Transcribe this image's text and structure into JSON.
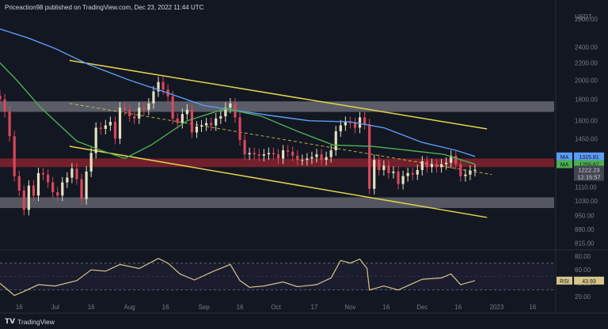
{
  "header": {
    "publisher": "Priceaction98 published on TradingView.com, Dec 23, 2022 11:44 UTC"
  },
  "footer": {
    "brand": "TradingView"
  },
  "chart_data": [
    {
      "type": "line",
      "title": "",
      "currency": "USDT",
      "y_ticks": [
        "2800.00",
        "2400.00",
        "2200.00",
        "2000.00",
        "1800.00",
        "1600.00",
        "1450.00",
        "1110.00",
        "1030.00",
        "950.00",
        "880.00",
        "815.00"
      ],
      "x_ticks": [
        "16",
        "Jul",
        "16",
        "Aug",
        "16",
        "Sep",
        "16",
        "Oct",
        "17",
        "Nov",
        "16",
        "Dec",
        "16",
        "2023",
        "16"
      ],
      "price_range_scale": "log",
      "ylim": [
        800,
        2900
      ],
      "xlim": [
        "2022-06-08",
        "2023-01-25"
      ],
      "candles_close": [
        [
          "2022-06-08",
          1800
        ],
        [
          "2022-06-10",
          1680
        ],
        [
          "2022-06-12",
          1470
        ],
        [
          "2022-06-14",
          1180
        ],
        [
          "2022-06-16",
          1090
        ],
        [
          "2022-06-18",
          980
        ],
        [
          "2022-06-20",
          1120
        ],
        [
          "2022-06-22",
          1060
        ],
        [
          "2022-06-24",
          1200
        ],
        [
          "2022-06-26",
          1190
        ],
        [
          "2022-06-28",
          1140
        ],
        [
          "2022-06-30",
          1080
        ],
        [
          "2022-07-02",
          1060
        ],
        [
          "2022-07-04",
          1140
        ],
        [
          "2022-07-06",
          1170
        ],
        [
          "2022-07-08",
          1230
        ],
        [
          "2022-07-10",
          1160
        ],
        [
          "2022-07-12",
          1040
        ],
        [
          "2022-07-14",
          1210
        ],
        [
          "2022-07-16",
          1340
        ],
        [
          "2022-07-18",
          1540
        ],
        [
          "2022-07-20",
          1530
        ],
        [
          "2022-07-22",
          1560
        ],
        [
          "2022-07-24",
          1590
        ],
        [
          "2022-07-26",
          1450
        ],
        [
          "2022-07-28",
          1720
        ],
        [
          "2022-07-30",
          1700
        ],
        [
          "2022-08-01",
          1640
        ],
        [
          "2022-08-03",
          1620
        ],
        [
          "2022-08-05",
          1720
        ],
        [
          "2022-08-07",
          1700
        ],
        [
          "2022-08-09",
          1760
        ],
        [
          "2022-08-11",
          1880
        ],
        [
          "2022-08-13",
          1980
        ],
        [
          "2022-08-15",
          1900
        ],
        [
          "2022-08-17",
          1830
        ],
        [
          "2022-08-19",
          1620
        ],
        [
          "2022-08-21",
          1580
        ],
        [
          "2022-08-23",
          1660
        ],
        [
          "2022-08-25",
          1700
        ],
        [
          "2022-08-27",
          1500
        ],
        [
          "2022-08-29",
          1550
        ],
        [
          "2022-08-31",
          1560
        ],
        [
          "2022-09-02",
          1580
        ],
        [
          "2022-09-04",
          1560
        ],
        [
          "2022-09-06",
          1620
        ],
        [
          "2022-09-08",
          1640
        ],
        [
          "2022-09-10",
          1720
        ],
        [
          "2022-09-12",
          1760
        ],
        [
          "2022-09-14",
          1630
        ],
        [
          "2022-09-16",
          1440
        ],
        [
          "2022-09-18",
          1330
        ],
        [
          "2022-09-20",
          1340
        ],
        [
          "2022-09-22",
          1330
        ],
        [
          "2022-09-24",
          1320
        ],
        [
          "2022-09-26",
          1330
        ],
        [
          "2022-09-28",
          1340
        ],
        [
          "2022-09-30",
          1330
        ],
        [
          "2022-10-02",
          1300
        ],
        [
          "2022-10-04",
          1360
        ],
        [
          "2022-10-06",
          1350
        ],
        [
          "2022-10-08",
          1320
        ],
        [
          "2022-10-10",
          1290
        ],
        [
          "2022-10-12",
          1290
        ],
        [
          "2022-10-14",
          1300
        ],
        [
          "2022-10-16",
          1310
        ],
        [
          "2022-10-18",
          1330
        ],
        [
          "2022-10-20",
          1290
        ],
        [
          "2022-10-22",
          1310
        ],
        [
          "2022-10-24",
          1360
        ],
        [
          "2022-10-26",
          1510
        ],
        [
          "2022-10-28",
          1560
        ],
        [
          "2022-10-30",
          1590
        ],
        [
          "2022-11-01",
          1580
        ],
        [
          "2022-11-03",
          1540
        ],
        [
          "2022-11-05",
          1630
        ],
        [
          "2022-11-07",
          1570
        ],
        [
          "2022-11-09",
          1100
        ],
        [
          "2022-11-11",
          1290
        ],
        [
          "2022-11-13",
          1220
        ],
        [
          "2022-11-15",
          1250
        ],
        [
          "2022-11-17",
          1200
        ],
        [
          "2022-11-19",
          1210
        ],
        [
          "2022-11-21",
          1130
        ],
        [
          "2022-11-23",
          1180
        ],
        [
          "2022-11-25",
          1200
        ],
        [
          "2022-11-27",
          1190
        ],
        [
          "2022-11-29",
          1220
        ],
        [
          "2022-12-01",
          1280
        ],
        [
          "2022-12-03",
          1240
        ],
        [
          "2022-12-05",
          1260
        ],
        [
          "2022-12-07",
          1240
        ],
        [
          "2022-12-09",
          1260
        ],
        [
          "2022-12-11",
          1270
        ],
        [
          "2022-12-13",
          1320
        ],
        [
          "2022-12-15",
          1260
        ],
        [
          "2022-12-17",
          1180
        ],
        [
          "2022-12-19",
          1190
        ],
        [
          "2022-12-21",
          1215
        ],
        [
          "2022-12-23",
          1222
        ]
      ],
      "series": [
        {
          "name": "MA",
          "color": "#5b9cf6",
          "label_value": "1315.81",
          "values": [
            [
              "2022-06-08",
              2650
            ],
            [
              "2022-06-20",
              2520
            ],
            [
              "2022-07-01",
              2380
            ],
            [
              "2022-07-15",
              2180
            ],
            [
              "2022-08-01",
              2000
            ],
            [
              "2022-08-15",
              1880
            ],
            [
              "2022-09-01",
              1740
            ],
            [
              "2022-09-15",
              1690
            ],
            [
              "2022-10-01",
              1640
            ],
            [
              "2022-10-15",
              1600
            ],
            [
              "2022-11-01",
              1590
            ],
            [
              "2022-11-15",
              1540
            ],
            [
              "2022-12-01",
              1420
            ],
            [
              "2022-12-15",
              1360
            ],
            [
              "2022-12-23",
              1315
            ]
          ]
        },
        {
          "name": "MA",
          "color": "#4caf50",
          "label_value": "1259.67",
          "values": [
            [
              "2022-06-08",
              2200
            ],
            [
              "2022-06-15",
              2000
            ],
            [
              "2022-06-25",
              1720
            ],
            [
              "2022-07-10",
              1430
            ],
            [
              "2022-07-20",
              1360
            ],
            [
              "2022-07-30",
              1300
            ],
            [
              "2022-08-10",
              1400
            ],
            [
              "2022-08-25",
              1600
            ],
            [
              "2022-09-10",
              1710
            ],
            [
              "2022-09-25",
              1640
            ],
            [
              "2022-10-10",
              1510
            ],
            [
              "2022-10-25",
              1400
            ],
            [
              "2022-11-10",
              1390
            ],
            [
              "2022-11-25",
              1360
            ],
            [
              "2022-12-10",
              1330
            ],
            [
              "2022-12-23",
              1260
            ]
          ]
        }
      ],
      "price_label": {
        "value": "1222.23",
        "countdown": "12:15:57"
      },
      "colors": {
        "ma_long": "#5b9cf6",
        "ma_short": "#4caf50",
        "channel": "#e6d24c",
        "resistance_zone": "#b22834",
        "grey_zone": "#9598a1",
        "up_candle": "#e5e0c0",
        "down_candle": "#d9475b",
        "price_tag": "#434651"
      }
    },
    {
      "type": "line",
      "title": "",
      "y_ticks": [
        "80.00",
        "60.00",
        "40.00",
        "20.00"
      ],
      "ylim": [
        12,
        85
      ],
      "series": [
        {
          "name": "RSI",
          "color": "#d6c48a",
          "label_value": "43.93",
          "values": [
            [
              "2022-06-08",
              40
            ],
            [
              "2022-06-14",
              22
            ],
            [
              "2022-06-18",
              28
            ],
            [
              "2022-06-24",
              38
            ],
            [
              "2022-07-01",
              36
            ],
            [
              "2022-07-10",
              44
            ],
            [
              "2022-07-16",
              60
            ],
            [
              "2022-07-22",
              58
            ],
            [
              "2022-07-28",
              68
            ],
            [
              "2022-08-05",
              62
            ],
            [
              "2022-08-13",
              77
            ],
            [
              "2022-08-17",
              70
            ],
            [
              "2022-08-22",
              54
            ],
            [
              "2022-08-28",
              45
            ],
            [
              "2022-09-05",
              58
            ],
            [
              "2022-09-12",
              68
            ],
            [
              "2022-09-16",
              44
            ],
            [
              "2022-09-20",
              34
            ],
            [
              "2022-09-26",
              36
            ],
            [
              "2022-10-04",
              42
            ],
            [
              "2022-10-10",
              35
            ],
            [
              "2022-10-18",
              38
            ],
            [
              "2022-10-24",
              48
            ],
            [
              "2022-10-28",
              74
            ],
            [
              "2022-11-01",
              70
            ],
            [
              "2022-11-05",
              76
            ],
            [
              "2022-11-08",
              62
            ],
            [
              "2022-11-09",
              30
            ],
            [
              "2022-11-15",
              36
            ],
            [
              "2022-11-21",
              30
            ],
            [
              "2022-12-01",
              46
            ],
            [
              "2022-12-09",
              48
            ],
            [
              "2022-12-13",
              54
            ],
            [
              "2022-12-17",
              38
            ],
            [
              "2022-12-23",
              44
            ]
          ]
        }
      ]
    }
  ]
}
